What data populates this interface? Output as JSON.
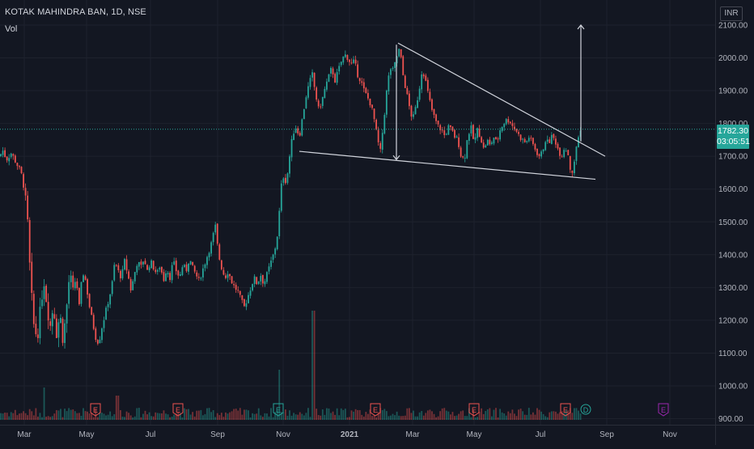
{
  "header": {
    "title": "KOTAK MAHINDRA BAN, 1D, NSE",
    "volume_label": "Vol"
  },
  "currency": "INR",
  "last_price": {
    "value": "1782.30",
    "countdown": "03:05:51"
  },
  "colors": {
    "up": "#26a69a",
    "down": "#ef5350",
    "background": "#131722",
    "grid": "#1e222d",
    "axis_text": "#b2b5be",
    "drawing": "#d1d4dc"
  },
  "chart_data": {
    "type": "candlestick",
    "y_axis": {
      "position": "right",
      "ticks": [
        900,
        1000,
        1100,
        1200,
        1300,
        1400,
        1500,
        1600,
        1700,
        1800,
        1900,
        2000,
        2100
      ],
      "tick_labels": [
        "900.00",
        "1000.00",
        "1100.00",
        "1200.00",
        "1300.00",
        "1400.00",
        "1500.00",
        "1600.00",
        "1700.00",
        "1800.00",
        "1900.00",
        "2000.00",
        "2100.00"
      ],
      "ylim": [
        885,
        2145
      ]
    },
    "x_axis": {
      "labels": [
        "Mar",
        "May",
        "Jul",
        "Sep",
        "Nov",
        "2021",
        "Mar",
        "May",
        "Jul",
        "Sep",
        "Nov"
      ]
    },
    "price_path": [
      {
        "t": 0,
        "p": 1700
      },
      {
        "t": 3,
        "p": 1720
      },
      {
        "t": 8,
        "p": 1690
      },
      {
        "t": 14,
        "p": 1710
      },
      {
        "t": 20,
        "p": 1680
      },
      {
        "t": 26,
        "p": 1650
      },
      {
        "t": 30,
        "p": 1600
      },
      {
        "t": 34,
        "p": 1500
      },
      {
        "t": 38,
        "p": 1300
      },
      {
        "t": 42,
        "p": 1180
      },
      {
        "t": 46,
        "p": 1150
      },
      {
        "t": 50,
        "p": 1230
      },
      {
        "t": 54,
        "p": 1330
      },
      {
        "t": 58,
        "p": 1250
      },
      {
        "t": 62,
        "p": 1180
      },
      {
        "t": 66,
        "p": 1250
      },
      {
        "t": 70,
        "p": 1160
      },
      {
        "t": 74,
        "p": 1220
      },
      {
        "t": 78,
        "p": 1140
      },
      {
        "t": 82,
        "p": 1230
      },
      {
        "t": 86,
        "p": 1340
      },
      {
        "t": 90,
        "p": 1290
      },
      {
        "t": 94,
        "p": 1330
      },
      {
        "t": 98,
        "p": 1240
      },
      {
        "t": 102,
        "p": 1350
      },
      {
        "t": 106,
        "p": 1320
      },
      {
        "t": 110,
        "p": 1250
      },
      {
        "t": 114,
        "p": 1200
      },
      {
        "t": 118,
        "p": 1150
      },
      {
        "t": 122,
        "p": 1130
      },
      {
        "t": 126,
        "p": 1180
      },
      {
        "t": 130,
        "p": 1220
      },
      {
        "t": 134,
        "p": 1260
      },
      {
        "t": 138,
        "p": 1300
      },
      {
        "t": 142,
        "p": 1380
      },
      {
        "t": 146,
        "p": 1350
      },
      {
        "t": 150,
        "p": 1330
      },
      {
        "t": 154,
        "p": 1380
      },
      {
        "t": 158,
        "p": 1340
      },
      {
        "t": 162,
        "p": 1290
      },
      {
        "t": 166,
        "p": 1340
      },
      {
        "t": 170,
        "p": 1380
      },
      {
        "t": 174,
        "p": 1360
      },
      {
        "t": 178,
        "p": 1390
      },
      {
        "t": 182,
        "p": 1350
      },
      {
        "t": 186,
        "p": 1380
      },
      {
        "t": 190,
        "p": 1360
      },
      {
        "t": 194,
        "p": 1340
      },
      {
        "t": 198,
        "p": 1370
      },
      {
        "t": 202,
        "p": 1320
      },
      {
        "t": 206,
        "p": 1360
      },
      {
        "t": 210,
        "p": 1330
      },
      {
        "t": 214,
        "p": 1380
      },
      {
        "t": 218,
        "p": 1350
      },
      {
        "t": 222,
        "p": 1330
      },
      {
        "t": 226,
        "p": 1370
      },
      {
        "t": 230,
        "p": 1350
      },
      {
        "t": 234,
        "p": 1390
      },
      {
        "t": 238,
        "p": 1360
      },
      {
        "t": 242,
        "p": 1340
      },
      {
        "t": 246,
        "p": 1320
      },
      {
        "t": 250,
        "p": 1350
      },
      {
        "t": 254,
        "p": 1380
      },
      {
        "t": 258,
        "p": 1410
      },
      {
        "t": 262,
        "p": 1440
      },
      {
        "t": 266,
        "p": 1490
      },
      {
        "t": 270,
        "p": 1400
      },
      {
        "t": 274,
        "p": 1360
      },
      {
        "t": 278,
        "p": 1330
      },
      {
        "t": 282,
        "p": 1350
      },
      {
        "t": 286,
        "p": 1320
      },
      {
        "t": 290,
        "p": 1300
      },
      {
        "t": 294,
        "p": 1290
      },
      {
        "t": 298,
        "p": 1260
      },
      {
        "t": 302,
        "p": 1240
      },
      {
        "t": 306,
        "p": 1270
      },
      {
        "t": 310,
        "p": 1300
      },
      {
        "t": 314,
        "p": 1330
      },
      {
        "t": 318,
        "p": 1310
      },
      {
        "t": 322,
        "p": 1340
      },
      {
        "t": 326,
        "p": 1310
      },
      {
        "t": 330,
        "p": 1340
      },
      {
        "t": 334,
        "p": 1370
      },
      {
        "t": 338,
        "p": 1400
      },
      {
        "t": 341,
        "p": 1430
      },
      {
        "t": 344,
        "p": 1480
      },
      {
        "t": 347,
        "p": 1600
      },
      {
        "t": 350,
        "p": 1640
      },
      {
        "t": 354,
        "p": 1620
      },
      {
        "t": 358,
        "p": 1700
      },
      {
        "t": 362,
        "p": 1770
      },
      {
        "t": 366,
        "p": 1790
      },
      {
        "t": 370,
        "p": 1760
      },
      {
        "t": 374,
        "p": 1820
      },
      {
        "t": 378,
        "p": 1880
      },
      {
        "t": 382,
        "p": 1920
      },
      {
        "t": 386,
        "p": 1950
      },
      {
        "t": 390,
        "p": 1890
      },
      {
        "t": 394,
        "p": 1840
      },
      {
        "t": 398,
        "p": 1870
      },
      {
        "t": 402,
        "p": 1910
      },
      {
        "t": 406,
        "p": 1940
      },
      {
        "t": 410,
        "p": 1970
      },
      {
        "t": 414,
        "p": 1930
      },
      {
        "t": 418,
        "p": 1960
      },
      {
        "t": 422,
        "p": 1990
      },
      {
        "t": 426,
        "p": 2010
      },
      {
        "t": 430,
        "p": 2000
      },
      {
        "t": 434,
        "p": 1980
      },
      {
        "t": 438,
        "p": 1990
      },
      {
        "t": 442,
        "p": 1950
      },
      {
        "t": 446,
        "p": 1930
      },
      {
        "t": 450,
        "p": 1900
      },
      {
        "t": 454,
        "p": 1880
      },
      {
        "t": 458,
        "p": 1860
      },
      {
        "t": 462,
        "p": 1820
      },
      {
        "t": 466,
        "p": 1760
      },
      {
        "t": 470,
        "p": 1710
      },
      {
        "t": 474,
        "p": 1800
      },
      {
        "t": 478,
        "p": 1900
      },
      {
        "t": 482,
        "p": 1970
      },
      {
        "t": 486,
        "p": 1960
      },
      {
        "t": 490,
        "p": 2000
      },
      {
        "t": 494,
        "p": 2030
      },
      {
        "t": 498,
        "p": 1950
      },
      {
        "t": 502,
        "p": 1900
      },
      {
        "t": 506,
        "p": 1850
      },
      {
        "t": 510,
        "p": 1810
      },
      {
        "t": 514,
        "p": 1850
      },
      {
        "t": 518,
        "p": 1900
      },
      {
        "t": 522,
        "p": 1970
      },
      {
        "t": 526,
        "p": 1930
      },
      {
        "t": 530,
        "p": 1880
      },
      {
        "t": 534,
        "p": 1840
      },
      {
        "t": 538,
        "p": 1810
      },
      {
        "t": 542,
        "p": 1790
      },
      {
        "t": 546,
        "p": 1780
      },
      {
        "t": 550,
        "p": 1760
      },
      {
        "t": 554,
        "p": 1790
      },
      {
        "t": 558,
        "p": 1780
      },
      {
        "t": 562,
        "p": 1760
      },
      {
        "t": 566,
        "p": 1750
      },
      {
        "t": 570,
        "p": 1700
      },
      {
        "t": 574,
        "p": 1690
      },
      {
        "t": 578,
        "p": 1760
      },
      {
        "t": 582,
        "p": 1790
      },
      {
        "t": 586,
        "p": 1740
      },
      {
        "t": 590,
        "p": 1780
      },
      {
        "t": 594,
        "p": 1760
      },
      {
        "t": 598,
        "p": 1720
      },
      {
        "t": 602,
        "p": 1750
      },
      {
        "t": 606,
        "p": 1730
      },
      {
        "t": 610,
        "p": 1760
      },
      {
        "t": 614,
        "p": 1740
      },
      {
        "t": 618,
        "p": 1780
      },
      {
        "t": 622,
        "p": 1800
      },
      {
        "t": 626,
        "p": 1810
      },
      {
        "t": 630,
        "p": 1810
      },
      {
        "t": 634,
        "p": 1790
      },
      {
        "t": 638,
        "p": 1780
      },
      {
        "t": 642,
        "p": 1760
      },
      {
        "t": 646,
        "p": 1750
      },
      {
        "t": 650,
        "p": 1740
      },
      {
        "t": 654,
        "p": 1760
      },
      {
        "t": 658,
        "p": 1740
      },
      {
        "t": 662,
        "p": 1720
      },
      {
        "t": 666,
        "p": 1700
      },
      {
        "t": 670,
        "p": 1710
      },
      {
        "t": 674,
        "p": 1750
      },
      {
        "t": 678,
        "p": 1740
      },
      {
        "t": 682,
        "p": 1760
      },
      {
        "t": 686,
        "p": 1750
      },
      {
        "t": 690,
        "p": 1720
      },
      {
        "t": 694,
        "p": 1700
      },
      {
        "t": 698,
        "p": 1730
      },
      {
        "t": 702,
        "p": 1710
      },
      {
        "t": 705,
        "p": 1660
      },
      {
        "t": 708,
        "p": 1650
      },
      {
        "t": 710,
        "p": 1680
      },
      {
        "t": 713,
        "p": 1740
      },
      {
        "t": 716,
        "p": 1770
      },
      {
        "t": 719,
        "p": 1782
      }
    ],
    "volume_markers": [
      {
        "t": 118,
        "type": "earnings",
        "label": "E",
        "color": "#ef5350"
      },
      {
        "t": 220,
        "type": "earnings",
        "label": "E",
        "color": "#ef5350"
      },
      {
        "t": 344,
        "type": "earnings",
        "label": "E",
        "color": "#26a69a"
      },
      {
        "t": 464,
        "type": "earnings",
        "label": "E",
        "color": "#ef5350"
      },
      {
        "t": 586,
        "type": "earnings",
        "label": "E",
        "color": "#ef5350"
      },
      {
        "t": 699,
        "type": "earnings",
        "label": "E",
        "color": "#ef5350"
      },
      {
        "t": 724,
        "type": "dividend",
        "label": "D",
        "color": "#26a69a"
      },
      {
        "t": 820,
        "type": "earnings",
        "label": "E",
        "color": "#9c27b0"
      }
    ],
    "drawings": [
      {
        "name": "falling-wedge-upper-trendline",
        "from": {
          "t": 492,
          "p": 2045
        },
        "to": {
          "t": 748,
          "p": 1700
        }
      },
      {
        "name": "falling-wedge-lower-trendline",
        "from": {
          "t": 370,
          "p": 1715
        },
        "to": {
          "t": 736,
          "p": 1630
        }
      },
      {
        "name": "wedge-height-arrow",
        "from": {
          "t": 490,
          "p": 2040
        },
        "to": {
          "t": 490,
          "p": 1690
        }
      },
      {
        "name": "target-projection-arrow",
        "from": {
          "t": 718,
          "p": 1745
        },
        "to": {
          "t": 718,
          "p": 2100
        }
      }
    ]
  }
}
